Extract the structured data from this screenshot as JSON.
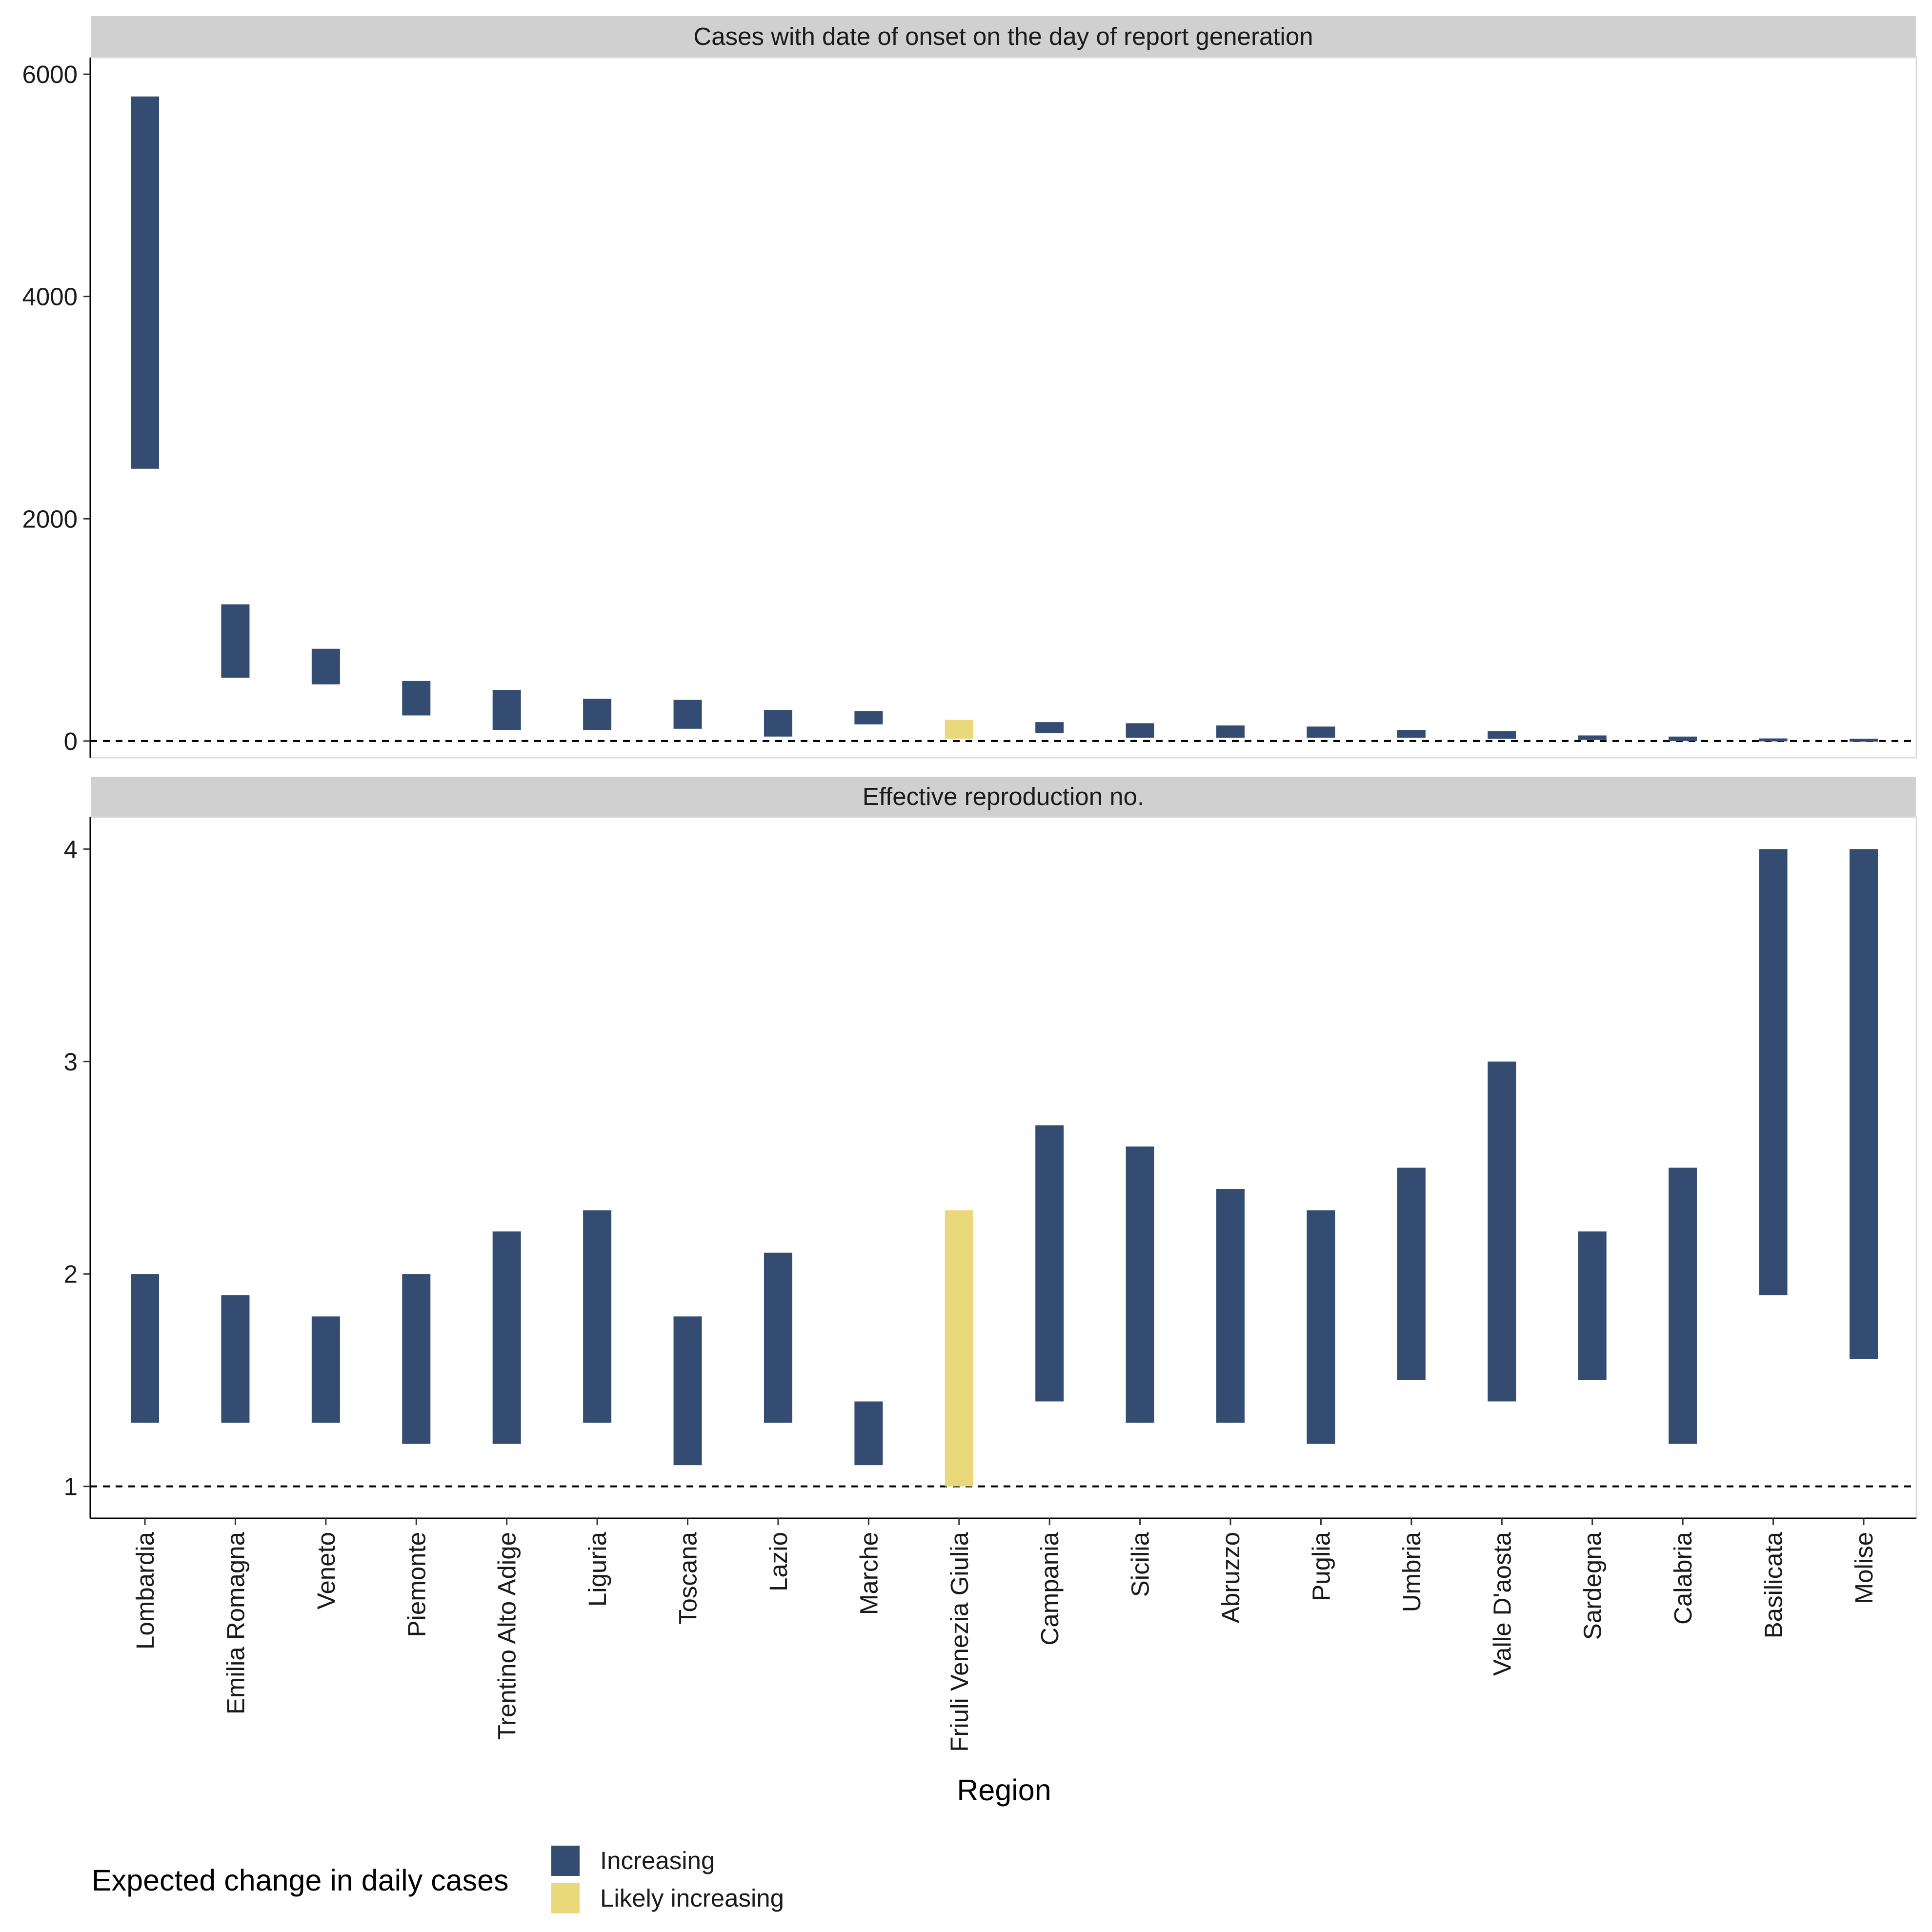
{
  "chart_data": {
    "type": "bar",
    "subtype": "range",
    "xlabel": "Region",
    "categories": [
      "Lombardia",
      "Emilia Romagna",
      "Veneto",
      "Piemonte",
      "Trentino Alto Adige",
      "Liguria",
      "Toscana",
      "Lazio",
      "Marche",
      "Friuli Venezia Giulia",
      "Campania",
      "Sicilia",
      "Abruzzo",
      "Puglia",
      "Umbria",
      "Valle D'aosta",
      "Sardegna",
      "Calabria",
      "Basilicata",
      "Molise"
    ],
    "category_class": [
      "Increasing",
      "Increasing",
      "Increasing",
      "Increasing",
      "Increasing",
      "Increasing",
      "Increasing",
      "Increasing",
      "Increasing",
      "Likely increasing",
      "Increasing",
      "Increasing",
      "Increasing",
      "Increasing",
      "Increasing",
      "Increasing",
      "Increasing",
      "Increasing",
      "Increasing",
      "Increasing"
    ],
    "legend": {
      "title": "Expected change in daily cases",
      "position": "bottom-left",
      "entries": [
        {
          "label": "Increasing",
          "color": "#344c71"
        },
        {
          "label": "Likely increasing",
          "color": "#ead97b"
        }
      ]
    },
    "panels": [
      {
        "title": "Cases with date of onset on the day of report generation",
        "ylim": [
          -150,
          6150
        ],
        "yticks": [
          0,
          2000,
          4000,
          6000
        ],
        "reference_line": 0,
        "lower": [
          2450,
          570,
          510,
          230,
          100,
          100,
          110,
          40,
          150,
          20,
          70,
          30,
          30,
          30,
          30,
          20,
          10,
          0,
          0,
          0
        ],
        "upper": [
          5800,
          1230,
          830,
          540,
          460,
          380,
          370,
          280,
          270,
          190,
          170,
          160,
          140,
          130,
          100,
          90,
          50,
          40,
          20,
          15
        ]
      },
      {
        "title": "Effective reproduction no.",
        "ylim": [
          0.85,
          4.15
        ],
        "yticks": [
          1,
          2,
          3,
          4
        ],
        "reference_line": 1,
        "lower": [
          1.3,
          1.3,
          1.3,
          1.2,
          1.2,
          1.3,
          1.1,
          1.3,
          1.1,
          1.0,
          1.4,
          1.3,
          1.3,
          1.2,
          1.5,
          1.4,
          1.5,
          1.2,
          1.9,
          1.6
        ],
        "upper": [
          2.0,
          1.9,
          1.8,
          2.0,
          2.2,
          2.3,
          1.8,
          2.1,
          1.4,
          2.3,
          2.7,
          2.6,
          2.4,
          2.3,
          2.5,
          3.0,
          2.2,
          2.5,
          4.0,
          4.0
        ]
      }
    ]
  }
}
